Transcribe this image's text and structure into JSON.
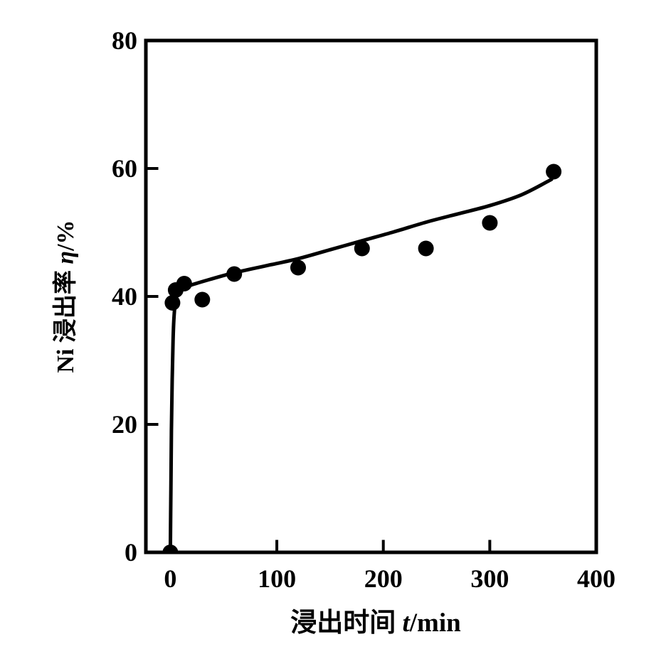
{
  "figure": {
    "background_color": "#ffffff",
    "ink_color": "#000000"
  },
  "chart_data": {
    "type": "scatter",
    "title": "",
    "xlabel": "浸出时间 t/min",
    "ylabel": "Ni 浸出率 η/%",
    "xlabel_parts": {
      "prefix": "浸出时间 ",
      "symbol": "t",
      "suffix": "/min"
    },
    "ylabel_parts": {
      "prefix": "Ni 浸出率 ",
      "symbol": "η",
      "suffix": "/%"
    },
    "xlim": [
      -23,
      400
    ],
    "ylim": [
      0,
      80
    ],
    "x_ticks": [
      "0",
      "100",
      "200",
      "300",
      "400"
    ],
    "x_tick_values": [
      0,
      100,
      200,
      300,
      400
    ],
    "x_inner_tick_values": [
      0,
      100,
      200,
      300
    ],
    "y_ticks": [
      "0",
      "20",
      "40",
      "60",
      "80"
    ],
    "y_tick_values": [
      0,
      20,
      40,
      60,
      80
    ],
    "y_inner_tick_values": [
      20,
      40,
      60
    ],
    "grid": false,
    "frame": "full-box",
    "marker": {
      "shape": "filled-circle",
      "radius_px": 11,
      "color": "#000000"
    },
    "line_color": "#000000",
    "series": [
      {
        "name": "measured-points",
        "type": "scatter",
        "points": [
          [
            0,
            0
          ],
          [
            2,
            39
          ],
          [
            5,
            41
          ],
          [
            13,
            42
          ],
          [
            30,
            39.5
          ],
          [
            60,
            43.5
          ],
          [
            120,
            44.5
          ],
          [
            180,
            47.5
          ],
          [
            240,
            47.5
          ],
          [
            300,
            51.5
          ],
          [
            360,
            59.5
          ]
        ]
      },
      {
        "name": "fitted-curve",
        "type": "line",
        "points": [
          [
            0,
            0
          ],
          [
            0.5,
            10
          ],
          [
            1,
            19
          ],
          [
            1.7,
            27
          ],
          [
            2.5,
            33
          ],
          [
            3.5,
            37
          ],
          [
            5,
            39.5
          ],
          [
            7,
            40.5
          ],
          [
            12,
            41.2
          ],
          [
            20,
            41.8
          ],
          [
            40,
            42.8
          ],
          [
            60,
            43.7
          ],
          [
            90,
            44.8
          ],
          [
            120,
            45.9
          ],
          [
            150,
            47.3
          ],
          [
            180,
            48.7
          ],
          [
            210,
            50.1
          ],
          [
            240,
            51.6
          ],
          [
            270,
            52.9
          ],
          [
            300,
            54.2
          ],
          [
            330,
            55.9
          ],
          [
            358,
            58.3
          ]
        ]
      }
    ]
  }
}
